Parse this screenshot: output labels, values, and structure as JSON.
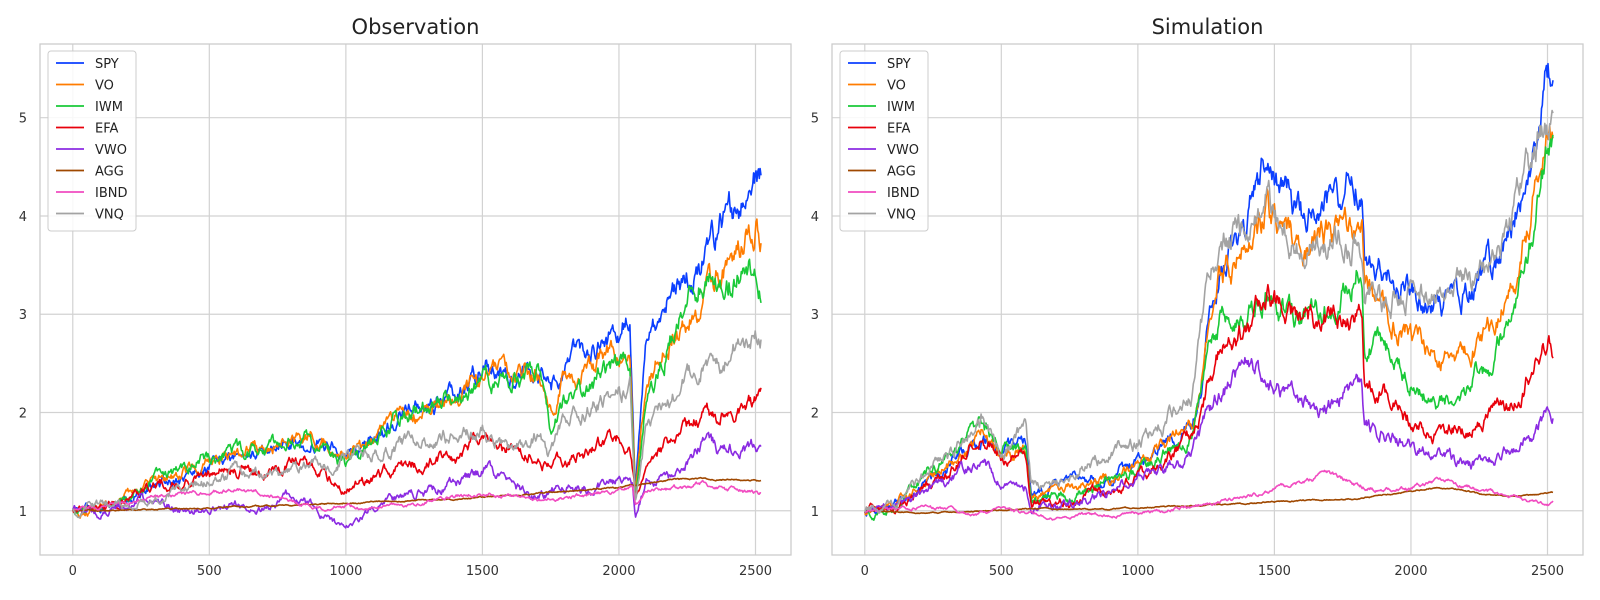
{
  "chart_data": [
    {
      "type": "line",
      "title": "Observation",
      "xlabel": "",
      "ylabel": "",
      "xlim": [
        -120,
        2630
      ],
      "ylim": [
        0.55,
        5.75
      ],
      "xticks": [
        0,
        500,
        1000,
        1500,
        2000,
        2500
      ],
      "yticks": [
        1,
        2,
        3,
        4,
        5
      ],
      "grid": true,
      "legend_position": "top-left",
      "series": [
        {
          "name": "SPY",
          "color": "#0b3fff",
          "x": [
            0,
            100,
            200,
            300,
            400,
            500,
            600,
            700,
            800,
            900,
            1000,
            1100,
            1200,
            1300,
            1400,
            1500,
            1600,
            1700,
            1750,
            1800,
            1900,
            2000,
            2040,
            2060,
            2100,
            2200,
            2300,
            2400,
            2500,
            2520
          ],
          "y": [
            1.0,
            1.05,
            1.12,
            1.25,
            1.35,
            1.45,
            1.55,
            1.6,
            1.72,
            1.72,
            1.6,
            1.72,
            1.98,
            2.07,
            2.2,
            2.45,
            2.42,
            2.48,
            2.2,
            2.5,
            2.65,
            2.82,
            3.05,
            1.25,
            2.7,
            3.25,
            3.45,
            4.0,
            4.4,
            4.35
          ]
        },
        {
          "name": "VO",
          "color": "#ff7c00",
          "x": [
            0,
            100,
            200,
            300,
            400,
            500,
            600,
            700,
            800,
            900,
            1000,
            1100,
            1200,
            1300,
            1400,
            1500,
            1600,
            1700,
            1750,
            1800,
            1900,
            2000,
            2040,
            2060,
            2100,
            2200,
            2300,
            2400,
            2500,
            2520
          ],
          "y": [
            1.0,
            1.05,
            1.13,
            1.28,
            1.38,
            1.48,
            1.57,
            1.65,
            1.8,
            1.75,
            1.58,
            1.72,
            1.95,
            2.05,
            2.15,
            2.32,
            2.35,
            2.4,
            2.0,
            2.35,
            2.45,
            2.62,
            2.75,
            1.2,
            2.4,
            2.85,
            3.0,
            3.55,
            3.95,
            3.82
          ]
        },
        {
          "name": "IWM",
          "color": "#1ac938",
          "x": [
            0,
            100,
            200,
            300,
            400,
            500,
            600,
            700,
            800,
            900,
            1000,
            1100,
            1200,
            1300,
            1400,
            1500,
            1600,
            1700,
            1750,
            1800,
            1900,
            2000,
            2040,
            2060,
            2100,
            2200,
            2300,
            2400,
            2500,
            2520
          ],
          "y": [
            1.0,
            1.04,
            1.15,
            1.32,
            1.45,
            1.55,
            1.6,
            1.6,
            1.72,
            1.68,
            1.45,
            1.68,
            1.95,
            2.05,
            2.2,
            2.3,
            2.35,
            2.45,
            1.8,
            2.1,
            2.3,
            2.45,
            2.5,
            1.1,
            2.1,
            2.8,
            3.35,
            3.4,
            3.55,
            3.25
          ]
        },
        {
          "name": "EFA",
          "color": "#e8000b",
          "x": [
            0,
            100,
            200,
            300,
            400,
            500,
            600,
            700,
            800,
            900,
            1000,
            1100,
            1200,
            1300,
            1400,
            1500,
            1600,
            1700,
            1750,
            1800,
            1900,
            2000,
            2040,
            2060,
            2100,
            2200,
            2300,
            2400,
            2500,
            2520
          ],
          "y": [
            1.0,
            1.05,
            1.12,
            1.25,
            1.3,
            1.38,
            1.42,
            1.4,
            1.5,
            1.4,
            1.22,
            1.3,
            1.45,
            1.5,
            1.55,
            1.72,
            1.62,
            1.55,
            1.45,
            1.5,
            1.6,
            1.75,
            1.72,
            1.15,
            1.45,
            1.75,
            1.95,
            2.0,
            2.08,
            2.12
          ]
        },
        {
          "name": "VWO",
          "color": "#8b2be2",
          "x": [
            0,
            100,
            200,
            300,
            400,
            500,
            600,
            700,
            800,
            900,
            950,
            1000,
            1100,
            1200,
            1300,
            1400,
            1500,
            1600,
            1700,
            1800,
            1900,
            2000,
            2050,
            2060,
            2100,
            2200,
            2300,
            2400,
            2500,
            2520
          ],
          "y": [
            1.0,
            0.97,
            1.06,
            1.1,
            1.02,
            1.05,
            1.05,
            1.02,
            1.15,
            1.0,
            0.88,
            0.82,
            1.05,
            1.12,
            1.2,
            1.28,
            1.42,
            1.25,
            1.15,
            1.25,
            1.2,
            1.28,
            1.35,
            0.95,
            1.3,
            1.3,
            1.68,
            1.6,
            1.65,
            1.65
          ]
        },
        {
          "name": "AGG",
          "color": "#9f4800",
          "x": [
            0,
            200,
            400,
            600,
            800,
            1000,
            1200,
            1400,
            1600,
            1800,
            2000,
            2100,
            2200,
            2300,
            2400,
            2520
          ],
          "y": [
            1.0,
            1.01,
            1.02,
            1.04,
            1.06,
            1.08,
            1.1,
            1.12,
            1.16,
            1.2,
            1.24,
            1.28,
            1.32,
            1.33,
            1.32,
            1.3
          ]
        },
        {
          "name": "IBND",
          "color": "#f14cc1",
          "x": [
            0,
            100,
            200,
            300,
            400,
            500,
            600,
            700,
            800,
            900,
            1000,
            1100,
            1200,
            1300,
            1400,
            1500,
            1600,
            1700,
            1800,
            1900,
            2000,
            2050,
            2060,
            2100,
            2200,
            2300,
            2400,
            2500,
            2520
          ],
          "y": [
            1.0,
            1.04,
            1.1,
            1.14,
            1.16,
            1.2,
            1.23,
            1.18,
            1.1,
            1.02,
            1.05,
            1.02,
            1.05,
            1.1,
            1.13,
            1.18,
            1.15,
            1.12,
            1.12,
            1.18,
            1.18,
            1.25,
            1.05,
            1.2,
            1.22,
            1.28,
            1.22,
            1.18,
            1.18
          ]
        },
        {
          "name": "VNQ",
          "color": "#a3a3a3",
          "x": [
            0,
            100,
            200,
            300,
            400,
            500,
            600,
            700,
            800,
            900,
            1000,
            1100,
            1200,
            1300,
            1400,
            1500,
            1600,
            1700,
            1740,
            1800,
            1900,
            2000,
            2040,
            2060,
            2100,
            2200,
            2300,
            2400,
            2500,
            2520
          ],
          "y": [
            1.0,
            1.05,
            1.08,
            1.12,
            1.22,
            1.3,
            1.4,
            1.35,
            1.42,
            1.45,
            1.55,
            1.6,
            1.68,
            1.72,
            1.78,
            1.82,
            1.6,
            1.8,
            1.6,
            1.95,
            2.05,
            2.2,
            2.25,
            1.1,
            1.9,
            2.2,
            2.5,
            2.6,
            2.85,
            2.8
          ]
        }
      ]
    },
    {
      "type": "line",
      "title": "Simulation",
      "xlabel": "",
      "ylabel": "",
      "xlim": [
        -120,
        2630
      ],
      "ylim": [
        0.55,
        5.75
      ],
      "xticks": [
        0,
        500,
        1000,
        1500,
        2000,
        2500
      ],
      "yticks": [
        1,
        2,
        3,
        4,
        5
      ],
      "grid": true,
      "legend_position": "top-left",
      "series": [
        {
          "name": "SPY",
          "color": "#0b3fff",
          "x": [
            0,
            100,
            200,
            300,
            430,
            500,
            590,
            610,
            700,
            800,
            900,
            1000,
            1100,
            1200,
            1230,
            1250,
            1300,
            1400,
            1470,
            1500,
            1600,
            1700,
            1820,
            1830,
            1900,
            2000,
            2100,
            2200,
            2300,
            2400,
            2500,
            2520
          ],
          "y": [
            1.0,
            1.05,
            1.25,
            1.45,
            1.75,
            1.6,
            1.7,
            1.15,
            1.25,
            1.3,
            1.35,
            1.5,
            1.7,
            1.9,
            2.3,
            2.8,
            3.5,
            3.9,
            4.55,
            4.3,
            4.0,
            4.1,
            4.45,
            3.6,
            3.5,
            3.3,
            3.0,
            3.2,
            3.5,
            4.2,
            5.5,
            5.35
          ]
        },
        {
          "name": "VO",
          "color": "#ff7c00",
          "x": [
            0,
            100,
            200,
            300,
            430,
            500,
            590,
            610,
            700,
            800,
            900,
            1000,
            1100,
            1200,
            1230,
            1250,
            1300,
            1400,
            1470,
            1500,
            1600,
            1700,
            1820,
            1830,
            1900,
            2000,
            2100,
            2200,
            2300,
            2400,
            2500,
            2520
          ],
          "y": [
            1.0,
            1.05,
            1.25,
            1.45,
            1.75,
            1.55,
            1.6,
            1.1,
            1.2,
            1.25,
            1.32,
            1.45,
            1.65,
            1.85,
            2.2,
            2.7,
            3.3,
            3.7,
            4.15,
            4.0,
            3.75,
            3.7,
            3.95,
            3.25,
            3.0,
            2.8,
            2.5,
            2.65,
            2.85,
            3.6,
            4.9,
            4.9
          ]
        },
        {
          "name": "IWM",
          "color": "#1ac938",
          "x": [
            0,
            100,
            200,
            300,
            430,
            500,
            590,
            610,
            700,
            800,
            900,
            1000,
            1100,
            1200,
            1230,
            1250,
            1300,
            1400,
            1470,
            1500,
            1600,
            1700,
            1820,
            1830,
            1900,
            2000,
            2100,
            2200,
            2300,
            2400,
            2500,
            2520
          ],
          "y": [
            1.0,
            0.98,
            1.3,
            1.55,
            1.85,
            1.65,
            1.6,
            1.1,
            1.15,
            1.2,
            1.28,
            1.4,
            1.6,
            1.8,
            2.1,
            2.5,
            2.9,
            3.0,
            3.3,
            3.1,
            2.9,
            3.1,
            3.6,
            2.75,
            2.7,
            2.3,
            2.1,
            2.3,
            2.5,
            3.3,
            4.7,
            4.65
          ]
        },
        {
          "name": "EFA",
          "color": "#e8000b",
          "x": [
            0,
            100,
            200,
            300,
            430,
            500,
            590,
            610,
            700,
            800,
            900,
            1000,
            1100,
            1200,
            1230,
            1250,
            1300,
            1400,
            1470,
            1500,
            1600,
            1700,
            1820,
            1830,
            1900,
            2000,
            2100,
            2200,
            2300,
            2400,
            2500,
            2520
          ],
          "y": [
            1.0,
            1.02,
            1.2,
            1.4,
            1.75,
            1.5,
            1.55,
            1.05,
            1.1,
            1.15,
            1.22,
            1.32,
            1.5,
            1.75,
            1.95,
            2.2,
            2.6,
            2.8,
            3.3,
            3.1,
            2.95,
            3.0,
            2.95,
            2.3,
            2.2,
            1.95,
            1.8,
            1.85,
            1.95,
            2.2,
            2.75,
            2.7
          ]
        },
        {
          "name": "VWO",
          "color": "#8b2be2",
          "x": [
            0,
            100,
            200,
            300,
            430,
            500,
            590,
            610,
            700,
            800,
            900,
            1000,
            1100,
            1200,
            1230,
            1250,
            1300,
            1400,
            1500,
            1600,
            1700,
            1820,
            1830,
            1900,
            2000,
            2100,
            2200,
            2300,
            2400,
            2500,
            2520
          ],
          "y": [
            1.0,
            1.02,
            1.15,
            1.3,
            1.55,
            1.3,
            1.25,
            1.0,
            1.05,
            1.12,
            1.2,
            1.3,
            1.45,
            1.6,
            1.75,
            1.95,
            2.15,
            2.5,
            2.3,
            2.05,
            2.1,
            2.3,
            1.85,
            1.8,
            1.65,
            1.55,
            1.45,
            1.5,
            1.7,
            2.0,
            2.0
          ]
        },
        {
          "name": "AGG",
          "color": "#9f4800",
          "x": [
            0,
            200,
            400,
            600,
            800,
            1000,
            1200,
            1400,
            1600,
            1800,
            2000,
            2100,
            2200,
            2300,
            2400,
            2520
          ],
          "y": [
            1.0,
            0.98,
            0.99,
            1.02,
            1.01,
            1.03,
            1.05,
            1.08,
            1.1,
            1.12,
            1.2,
            1.24,
            1.2,
            1.15,
            1.15,
            1.18
          ]
        },
        {
          "name": "IBND",
          "color": "#f14cc1",
          "x": [
            0,
            100,
            200,
            300,
            400,
            500,
            600,
            700,
            800,
            900,
            1000,
            1100,
            1200,
            1300,
            1400,
            1500,
            1600,
            1700,
            1800,
            1900,
            2000,
            2100,
            2200,
            2300,
            2400,
            2500,
            2520
          ],
          "y": [
            1.0,
            1.02,
            1.04,
            1.02,
            0.96,
            1.02,
            0.98,
            0.92,
            0.96,
            0.96,
            1.0,
            1.0,
            1.05,
            1.1,
            1.15,
            1.22,
            1.3,
            1.38,
            1.25,
            1.22,
            1.22,
            1.3,
            1.25,
            1.18,
            1.12,
            1.05,
            1.08
          ]
        },
        {
          "name": "VNQ",
          "color": "#a3a3a3",
          "x": [
            0,
            100,
            200,
            300,
            430,
            500,
            590,
            610,
            700,
            800,
            900,
            1000,
            1100,
            1200,
            1230,
            1250,
            1300,
            1400,
            1470,
            1500,
            1600,
            1700,
            1820,
            1830,
            1900,
            2000,
            2100,
            2200,
            2300,
            2400,
            2500,
            2520
          ],
          "y": [
            1.0,
            1.05,
            1.3,
            1.55,
            1.95,
            1.6,
            1.85,
            1.25,
            1.3,
            1.45,
            1.55,
            1.7,
            1.9,
            2.2,
            2.9,
            3.2,
            3.6,
            3.9,
            4.2,
            3.9,
            3.7,
            3.65,
            3.8,
            3.2,
            3.1,
            3.3,
            3.2,
            3.3,
            3.5,
            4.3,
            5.0,
            5.1
          ]
        }
      ]
    }
  ]
}
